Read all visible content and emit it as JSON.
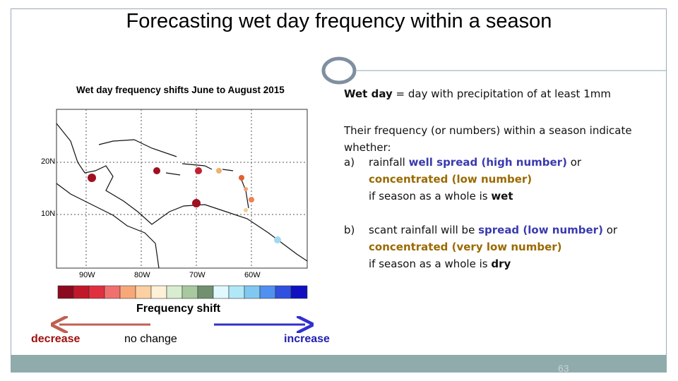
{
  "title": "Forecasting wet day frequency within a season",
  "map": {
    "title": "Wet day frequency shifts June to August 2015",
    "lat_labels": [
      "20N",
      "10N"
    ],
    "lon_labels": [
      "90W",
      "80W",
      "70W",
      "60W"
    ]
  },
  "legend": {
    "label": "Frequency shift",
    "decrease": "decrease",
    "no_change": "no change",
    "increase": "increase"
  },
  "text": {
    "definition": [
      "Wet day",
      " = day with precipitation of at least 1mm"
    ],
    "intro": "Their frequency (or numbers) within a season indicate whether:",
    "item_a": {
      "marker": "a)",
      "line1": [
        "rainfall ",
        "well spread (high number)",
        " or"
      ],
      "line2": "concentrated (low number)",
      "line3": [
        "if season as a whole is ",
        "wet"
      ]
    },
    "item_b": {
      "marker": "b)",
      "line1": [
        "scant rainfall will be ",
        "spread (low number)",
        " or"
      ],
      "line2": "concentrated (very low number)",
      "line3": [
        "if season as a whole is ",
        "dry"
      ]
    }
  },
  "page_number": "63"
}
